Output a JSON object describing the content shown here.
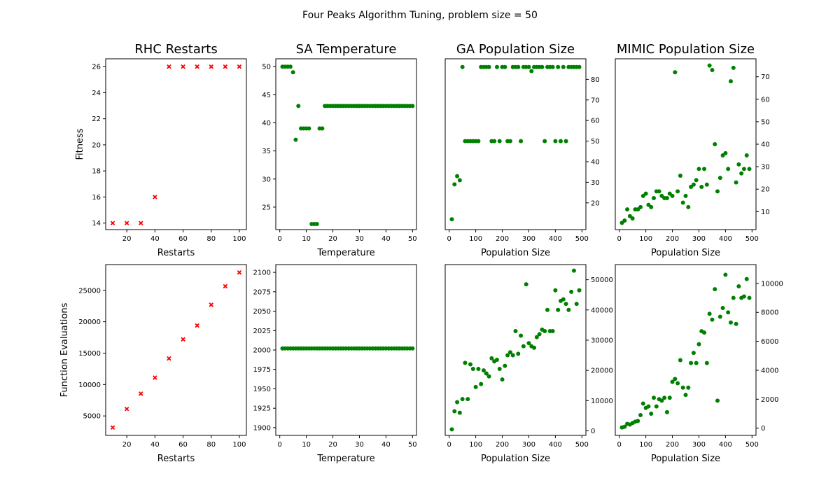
{
  "suptitle": "Four Peaks Algorithm Tuning, problem size = 50",
  "chart_data": [
    {
      "type": "scatter",
      "title": "RHC Restarts",
      "xlabel": "Restarts",
      "ylabel": "Fitness",
      "marker": "x",
      "color": "#ff0000",
      "xlim": [
        5,
        105
      ],
      "ylim": [
        13.5,
        26.6
      ],
      "yticks_side": "left",
      "xticks": [
        20,
        40,
        60,
        80,
        100
      ],
      "yticks": [
        14,
        16,
        18,
        20,
        22,
        24,
        26
      ],
      "x": [
        10,
        20,
        30,
        40,
        50,
        60,
        70,
        80,
        90,
        100
      ],
      "y": [
        14,
        14,
        14,
        16,
        26,
        26,
        26,
        26,
        26,
        26
      ]
    },
    {
      "type": "scatter",
      "title": "SA Temperature",
      "xlabel": "Temperature",
      "ylabel": "",
      "marker": "o",
      "color": "#008000",
      "xlim": [
        -1.5,
        51.5
      ],
      "ylim": [
        21,
        51.4
      ],
      "yticks_side": "left",
      "xticks": [
        0,
        10,
        20,
        30,
        40,
        50
      ],
      "yticks": [
        25,
        30,
        35,
        40,
        45,
        50
      ],
      "x": [
        1,
        2,
        3,
        4,
        5,
        6,
        7,
        8,
        9,
        10,
        11,
        12,
        13,
        14,
        15,
        16,
        17,
        18,
        19,
        20,
        21,
        22,
        23,
        24,
        25,
        26,
        27,
        28,
        29,
        30,
        31,
        32,
        33,
        34,
        35,
        36,
        37,
        38,
        39,
        40,
        41,
        42,
        43,
        44,
        45,
        46,
        47,
        48,
        49,
        50
      ],
      "y": [
        50,
        50,
        50,
        50,
        49,
        37,
        43,
        39,
        39,
        39,
        39,
        22,
        22,
        22,
        39,
        39,
        43,
        43,
        43,
        43,
        43,
        43,
        43,
        43,
        43,
        43,
        43,
        43,
        43,
        43,
        43,
        43,
        43,
        43,
        43,
        43,
        43,
        43,
        43,
        43,
        43,
        43,
        43,
        43,
        43,
        43,
        43,
        43,
        43,
        43
      ]
    },
    {
      "type": "scatter",
      "title": "GA Population Size",
      "xlabel": "Population Size",
      "ylabel": "",
      "marker": "o",
      "color": "#008000",
      "xlim": [
        -15,
        515
      ],
      "ylim": [
        7,
        90
      ],
      "yticks_side": "right",
      "xticks": [
        0,
        100,
        200,
        300,
        400,
        500
      ],
      "yticks": [
        20,
        30,
        40,
        50,
        60,
        70,
        80
      ],
      "x": [
        10,
        20,
        30,
        40,
        50,
        60,
        70,
        80,
        90,
        100,
        110,
        120,
        130,
        140,
        150,
        160,
        170,
        180,
        190,
        200,
        210,
        220,
        230,
        240,
        250,
        260,
        270,
        280,
        290,
        300,
        310,
        320,
        330,
        340,
        350,
        360,
        370,
        380,
        390,
        400,
        410,
        420,
        430,
        440,
        450,
        460,
        470,
        480,
        490
      ],
      "y": [
        12,
        29,
        33,
        31,
        86,
        50,
        50,
        50,
        50,
        50,
        50,
        86,
        86,
        86,
        86,
        50,
        50,
        86,
        50,
        86,
        86,
        50,
        50,
        86,
        86,
        86,
        50,
        86,
        86,
        86,
        84,
        86,
        86,
        86,
        86,
        50,
        86,
        86,
        86,
        50,
        86,
        50,
        86,
        50,
        86,
        86,
        86,
        86,
        86
      ]
    },
    {
      "type": "scatter",
      "title": "MIMIC Population Size",
      "xlabel": "Population Size",
      "ylabel": "",
      "marker": "o",
      "color": "#008000",
      "xlim": [
        -15,
        515
      ],
      "ylim": [
        2,
        78
      ],
      "yticks_side": "right",
      "xticks": [
        0,
        100,
        200,
        300,
        400,
        500
      ],
      "yticks": [
        10,
        20,
        30,
        40,
        50,
        60,
        70
      ],
      "x": [
        10,
        20,
        30,
        40,
        50,
        60,
        70,
        80,
        90,
        100,
        110,
        120,
        130,
        140,
        150,
        160,
        170,
        180,
        190,
        200,
        210,
        220,
        230,
        240,
        250,
        260,
        270,
        280,
        290,
        300,
        310,
        320,
        330,
        340,
        350,
        360,
        370,
        380,
        390,
        400,
        410,
        420,
        430,
        440,
        450,
        460,
        470,
        480,
        490
      ],
      "y": [
        5,
        6,
        11,
        8,
        7,
        11,
        11,
        12,
        17,
        18,
        13,
        12,
        16,
        19,
        19,
        17,
        16,
        16,
        18,
        17,
        72,
        19,
        26,
        14,
        17,
        12,
        21,
        22,
        24,
        29,
        21,
        29,
        22,
        75,
        73,
        40,
        19,
        25,
        35,
        36,
        29,
        68,
        74,
        23,
        31,
        27,
        29,
        35,
        29
      ]
    },
    {
      "type": "scatter",
      "title": "",
      "xlabel": "Restarts",
      "ylabel": "Function Evaluations",
      "marker": "x",
      "color": "#ff0000",
      "xlim": [
        5,
        105
      ],
      "ylim": [
        1900,
        29100
      ],
      "yticks_side": "left",
      "xticks": [
        20,
        40,
        60,
        80,
        100
      ],
      "yticks": [
        5000,
        10000,
        15000,
        20000,
        25000
      ],
      "x": [
        10,
        20,
        30,
        40,
        50,
        60,
        70,
        80,
        90,
        100
      ],
      "y": [
        3150,
        6100,
        8550,
        11100,
        14150,
        17200,
        19400,
        22700,
        25650,
        27850
      ]
    },
    {
      "type": "scatter",
      "title": "",
      "xlabel": "Temperature",
      "ylabel": "",
      "marker": "o",
      "color": "#008000",
      "xlim": [
        -1.5,
        51.5
      ],
      "ylim": [
        1890,
        2110
      ],
      "yticks_side": "left",
      "xticks": [
        0,
        10,
        20,
        30,
        40,
        50
      ],
      "yticks": [
        1900,
        1925,
        1950,
        1975,
        2000,
        2025,
        2050,
        2075,
        2100
      ],
      "x": [
        1,
        2,
        3,
        4,
        5,
        6,
        7,
        8,
        9,
        10,
        11,
        12,
        13,
        14,
        15,
        16,
        17,
        18,
        19,
        20,
        21,
        22,
        23,
        24,
        25,
        26,
        27,
        28,
        29,
        30,
        31,
        32,
        33,
        34,
        35,
        36,
        37,
        38,
        39,
        40,
        41,
        42,
        43,
        44,
        45,
        46,
        47,
        48,
        49,
        50
      ],
      "y": [
        2002,
        2002,
        2002,
        2002,
        2002,
        2002,
        2002,
        2002,
        2002,
        2002,
        2002,
        2002,
        2002,
        2002,
        2002,
        2002,
        2002,
        2002,
        2002,
        2002,
        2002,
        2002,
        2002,
        2002,
        2002,
        2002,
        2002,
        2002,
        2002,
        2002,
        2002,
        2002,
        2002,
        2002,
        2002,
        2002,
        2002,
        2002,
        2002,
        2002,
        2002,
        2002,
        2002,
        2002,
        2002,
        2002,
        2002,
        2002,
        2002,
        2002
      ]
    },
    {
      "type": "scatter",
      "title": "",
      "xlabel": "Population Size",
      "ylabel": "",
      "marker": "o",
      "color": "#008000",
      "xlim": [
        -15,
        515
      ],
      "ylim": [
        -1500,
        55000
      ],
      "yticks_side": "right",
      "xticks": [
        0,
        100,
        200,
        300,
        400,
        500
      ],
      "yticks": [
        0,
        10000,
        20000,
        30000,
        40000,
        50000
      ],
      "x": [
        10,
        20,
        30,
        40,
        50,
        60,
        70,
        80,
        90,
        100,
        110,
        120,
        130,
        140,
        150,
        160,
        170,
        180,
        190,
        200,
        210,
        220,
        230,
        240,
        250,
        260,
        270,
        280,
        290,
        300,
        310,
        320,
        330,
        340,
        350,
        360,
        370,
        380,
        390,
        400,
        410,
        420,
        430,
        440,
        450,
        460,
        470,
        480,
        490
      ],
      "y": [
        500,
        6500,
        9500,
        6000,
        10500,
        22500,
        10500,
        22000,
        20500,
        14500,
        20500,
        15500,
        20000,
        19000,
        18000,
        24000,
        23000,
        23500,
        20500,
        17000,
        21500,
        25000,
        26000,
        25000,
        33000,
        25500,
        31500,
        28000,
        48500,
        29000,
        28000,
        27500,
        31000,
        32000,
        33500,
        33000,
        40000,
        33000,
        33000,
        46500,
        40000,
        43000,
        43500,
        42000,
        40000,
        46000,
        53000,
        42000,
        46500
      ]
    },
    {
      "type": "scatter",
      "title": "",
      "xlabel": "Population Size",
      "ylabel": "",
      "marker": "o",
      "color": "#008000",
      "xlim": [
        -15,
        515
      ],
      "ylim": [
        -500,
        11300
      ],
      "yticks_side": "right",
      "xticks": [
        0,
        100,
        200,
        300,
        400,
        500
      ],
      "yticks": [
        0,
        2000,
        4000,
        6000,
        8000,
        10000
      ],
      "x": [
        10,
        20,
        30,
        40,
        50,
        60,
        70,
        80,
        90,
        100,
        110,
        120,
        130,
        140,
        150,
        160,
        170,
        180,
        190,
        200,
        210,
        220,
        230,
        240,
        250,
        260,
        270,
        280,
        290,
        300,
        310,
        320,
        330,
        340,
        350,
        360,
        370,
        380,
        390,
        400,
        410,
        420,
        430,
        440,
        450,
        460,
        470,
        480,
        490
      ],
      "y": [
        50,
        100,
        300,
        250,
        350,
        450,
        500,
        900,
        1700,
        1400,
        1500,
        1000,
        2100,
        1500,
        2000,
        1900,
        2100,
        1100,
        2100,
        3200,
        3400,
        3100,
        4700,
        2800,
        2300,
        2800,
        4500,
        5200,
        4500,
        5800,
        6700,
        6600,
        4500,
        7900,
        7500,
        9600,
        1900,
        7700,
        8300,
        10600,
        8000,
        7300,
        9000,
        7200,
        9800,
        9000,
        9100,
        10300,
        9000
      ]
    }
  ]
}
